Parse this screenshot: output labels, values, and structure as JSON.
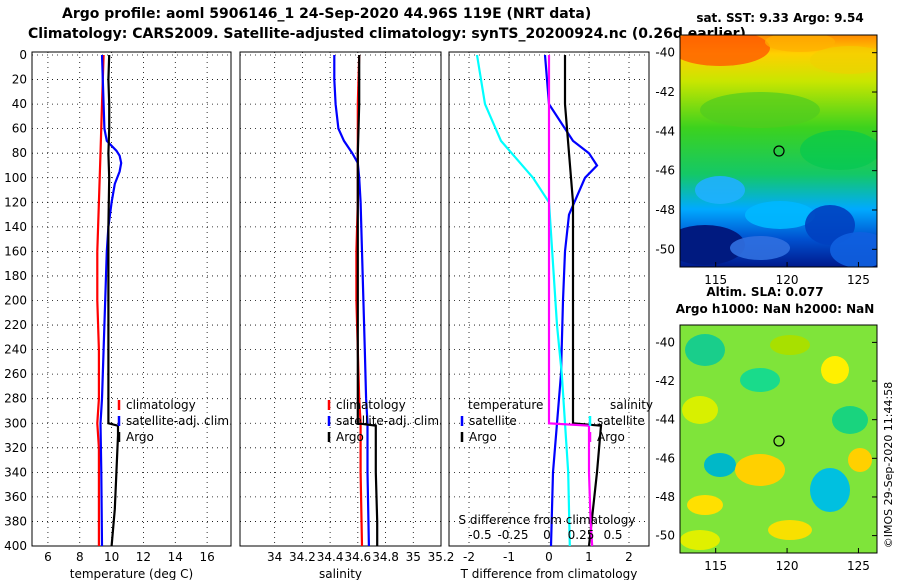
{
  "header": {
    "title_line1": "Argo profile: aoml 5906146_1 24-Sep-2020 44.96S 119E (NRT data)",
    "title_line2": "Climatology: CARS2009. Satellite-adjusted climatology: synTS_20200924.nc (0.26d earlier)"
  },
  "colors": {
    "climatology": "#ff0000",
    "satellite": "#0000ff",
    "argo": "#000000",
    "sat_temp_diff": "#00ffff",
    "sat_sal_diff": "#ff00ff"
  },
  "chart_data": [
    {
      "type": "line",
      "id": "temperature",
      "xlabel": "temperature (deg C)",
      "ylabel": "",
      "xlim": [
        5,
        17.5
      ],
      "ylim": [
        400,
        0
      ],
      "xticks": [
        "6",
        "8",
        "10",
        "12",
        "14",
        "16"
      ],
      "xtick_values": [
        6,
        8,
        10,
        12,
        14,
        16
      ],
      "yticks": [
        "0",
        "20",
        "40",
        "60",
        "80",
        "100",
        "120",
        "140",
        "160",
        "180",
        "200",
        "220",
        "240",
        "260",
        "280",
        "300",
        "320",
        "340",
        "360",
        "380",
        "400"
      ],
      "ytick_values": [
        0,
        20,
        40,
        60,
        80,
        100,
        120,
        140,
        160,
        180,
        200,
        220,
        240,
        260,
        280,
        300,
        320,
        340,
        360,
        380,
        400
      ],
      "legend": [
        "climatology",
        "satellite-adj. clim.",
        "Argo"
      ],
      "legend_position": "lower-right",
      "series": [
        {
          "name": "climatology",
          "color": "#ff0000",
          "depth": [
            0,
            40,
            80,
            120,
            160,
            200,
            240,
            280,
            300,
            320,
            360,
            400
          ],
          "values": [
            9.5,
            9.4,
            9.3,
            9.2,
            9.1,
            9.1,
            9.2,
            9.2,
            9.1,
            9.2,
            9.2,
            9.2
          ]
        },
        {
          "name": "satellite-adj. clim.",
          "color": "#0000ff",
          "depth": [
            0,
            20,
            40,
            60,
            70,
            78,
            82,
            88,
            95,
            105,
            120,
            140,
            160,
            200,
            240,
            280,
            300,
            340,
            400
          ],
          "values": [
            9.4,
            9.45,
            9.5,
            9.55,
            9.7,
            10.3,
            10.5,
            10.6,
            10.5,
            10.2,
            10.0,
            9.8,
            9.7,
            9.6,
            9.5,
            9.4,
            9.3,
            9.35,
            9.4
          ]
        },
        {
          "name": "Argo",
          "color": "#000000",
          "depth": [
            0,
            20,
            40,
            60,
            80,
            100,
            140,
            180,
            220,
            260,
            290,
            300,
            302,
            310,
            340,
            370,
            400
          ],
          "values": [
            9.85,
            9.8,
            9.85,
            9.85,
            9.8,
            9.85,
            9.8,
            9.8,
            9.8,
            9.8,
            9.8,
            9.8,
            10.4,
            10.4,
            10.3,
            10.2,
            10.0
          ]
        }
      ]
    },
    {
      "type": "line",
      "id": "salinity",
      "xlabel": "salinity",
      "xlim": [
        33.75,
        35.2
      ],
      "ylim": [
        400,
        0
      ],
      "xticks": [
        "34",
        "34.2",
        "34.4",
        "34.6",
        "34.8",
        "35",
        "35.2"
      ],
      "xtick_values": [
        34,
        34.2,
        34.4,
        34.6,
        34.8,
        35,
        35.2
      ],
      "legend": [
        "climatology",
        "satellite-adj. clim.",
        "Argo"
      ],
      "legend_position": "lower-left",
      "series": [
        {
          "name": "climatology",
          "color": "#ff0000",
          "depth": [
            0,
            40,
            80,
            120,
            160,
            200,
            240,
            280,
            300,
            340,
            400
          ],
          "values": [
            34.61,
            34.6,
            34.6,
            34.6,
            34.59,
            34.59,
            34.6,
            34.61,
            34.62,
            34.62,
            34.63
          ]
        },
        {
          "name": "satellite-adj. clim.",
          "color": "#0000ff",
          "depth": [
            0,
            20,
            40,
            60,
            70,
            80,
            88,
            100,
            120,
            160,
            200,
            240,
            280,
            300,
            340,
            400
          ],
          "values": [
            34.43,
            34.43,
            34.44,
            34.46,
            34.5,
            34.56,
            34.6,
            34.61,
            34.62,
            34.63,
            34.64,
            34.65,
            34.66,
            34.67,
            34.67,
            34.68
          ]
        },
        {
          "name": "Argo",
          "color": "#000000",
          "depth": [
            0,
            40,
            80,
            120,
            160,
            200,
            240,
            280,
            300,
            302,
            340,
            380,
            400
          ],
          "values": [
            34.61,
            34.61,
            34.6,
            34.6,
            34.6,
            34.6,
            34.6,
            34.6,
            34.6,
            34.73,
            34.73,
            34.74,
            34.74
          ]
        }
      ]
    },
    {
      "type": "line",
      "id": "difference",
      "xlabel": "T difference from climatology",
      "xlim": [
        -2.5,
        2.5
      ],
      "ylim": [
        400,
        0
      ],
      "xticks": [
        "-2",
        "-1",
        "0",
        "1",
        "2"
      ],
      "xtick_values": [
        -2,
        -1,
        0,
        1,
        2
      ],
      "secondary_xlabel": "S difference from climatology",
      "secondary_xticks": [
        "-0.5",
        "-0.25",
        "0",
        "0.25",
        "0.5"
      ],
      "legend_title_left": "temperature",
      "legend_title_right": "salinity",
      "legend": [
        "satellite",
        "Argo",
        "satellite",
        "Argo"
      ],
      "series": [
        {
          "name": "temperature satellite",
          "color": "#0000ff",
          "depth": [
            0,
            40,
            70,
            80,
            90,
            100,
            115,
            130,
            160,
            200,
            260,
            300,
            340,
            400
          ],
          "values": [
            -0.1,
            0.0,
            0.6,
            1.0,
            1.2,
            0.9,
            0.7,
            0.5,
            0.4,
            0.35,
            0.3,
            0.2,
            0.1,
            0.05
          ]
        },
        {
          "name": "temperature Argo",
          "color": "#000000",
          "depth": [
            0,
            40,
            80,
            120,
            160,
            200,
            260,
            300,
            302,
            340,
            400
          ],
          "values": [
            0.4,
            0.4,
            0.5,
            0.6,
            0.6,
            0.6,
            0.6,
            0.6,
            1.3,
            1.2,
            1.0
          ]
        },
        {
          "name": "salinity satellite",
          "color": "#00ffff",
          "depth": [
            0,
            40,
            70,
            85,
            100,
            120,
            160,
            220,
            260,
            300,
            340,
            400
          ],
          "values": [
            -0.45,
            -0.4,
            -0.3,
            -0.2,
            -0.1,
            0.0,
            0.02,
            0.05,
            0.08,
            0.1,
            0.12,
            0.13
          ]
        },
        {
          "name": "salinity Argo",
          "color": "#ff00ff",
          "depth": [
            0,
            60,
            120,
            200,
            260,
            300,
            302,
            340,
            380,
            400
          ],
          "values": [
            0.0,
            0.0,
            0.0,
            0.0,
            0.0,
            0.0,
            0.25,
            0.25,
            0.26,
            0.27
          ]
        }
      ]
    },
    {
      "type": "heatmap",
      "id": "sst_map",
      "title": "sat. SST: 9.33 Argo: 9.54",
      "xticks": [
        "115",
        "120",
        "125"
      ],
      "xtick_values": [
        115,
        120,
        125
      ],
      "yticks": [
        "-40",
        "-42",
        "-44",
        "-46",
        "-48",
        "-50"
      ],
      "ytick_values": [
        -40,
        -42,
        -44,
        -46,
        -48,
        -50
      ],
      "xlim": [
        112.5,
        126.3
      ],
      "ylim": [
        -50.9,
        -39.1
      ],
      "marker": {
        "lon": 119,
        "lat": -44.96
      }
    },
    {
      "type": "heatmap",
      "id": "sla_map",
      "title": "Altim. SLA: 0.077",
      "subtitle": "Argo h1000: NaN h2000: NaN",
      "xticks": [
        "115",
        "120",
        "125"
      ],
      "xtick_values": [
        115,
        120,
        125
      ],
      "yticks": [
        "-40",
        "-42",
        "-44",
        "-46",
        "-48",
        "-50"
      ],
      "ytick_values": [
        -40,
        -42,
        -44,
        -46,
        -48,
        -50
      ],
      "xlim": [
        112.5,
        126.3
      ],
      "ylim": [
        -50.9,
        -39.1
      ],
      "marker": {
        "lon": 119,
        "lat": -44.96
      }
    }
  ],
  "footer": {
    "stamp": "©IMOS 29-Sep-2020 11:44:58"
  }
}
